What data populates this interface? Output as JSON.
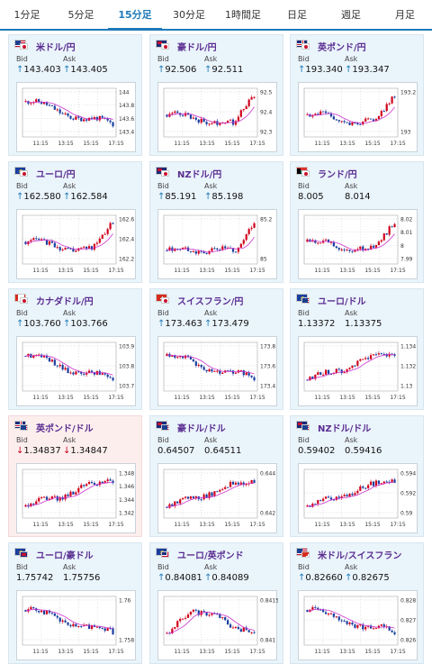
{
  "tabs": [
    {
      "label": "1分足"
    },
    {
      "label": "5分足"
    },
    {
      "label": "15分足",
      "active": true
    },
    {
      "label": "30分足"
    },
    {
      "label": "1時間足"
    },
    {
      "label": "日足"
    },
    {
      "label": "週足"
    },
    {
      "label": "月足"
    }
  ],
  "labels": {
    "bid": "Bid",
    "ask": "Ask"
  },
  "colors": {
    "accent": "#1e7ab8",
    "up": "#1e7ab8",
    "down": "#d0021b",
    "pair_name": "#5a2d91",
    "candle_up": "#d0021b",
    "candle_down": "#1a3fa0",
    "ma": "#cc33cc"
  },
  "x_ticks": [
    "11:15",
    "13:15",
    "15:15",
    "17:15"
  ],
  "pairs": [
    {
      "name": "米ドル/円",
      "flag": "us-jp",
      "bid": "143.403",
      "ask": "143.405",
      "bid_dir": "up",
      "ask_dir": "up",
      "y_ticks": [
        "144",
        "143.8",
        "143.6",
        "143.4"
      ],
      "trend": "down"
    },
    {
      "name": "豪ドル/円",
      "flag": "au-jp",
      "bid": "92.506",
      "ask": "92.511",
      "bid_dir": "up",
      "ask_dir": "up",
      "y_ticks": [
        "92.5",
        "92.4",
        "92.3"
      ],
      "trend": "vup"
    },
    {
      "name": "英ポンド/円",
      "flag": "gb-jp",
      "bid": "193.340",
      "ask": "193.347",
      "bid_dir": "up",
      "ask_dir": "up",
      "y_ticks": [
        "193.2",
        "193"
      ],
      "trend": "vup"
    },
    {
      "name": "ユーロ/円",
      "flag": "eu-jp",
      "bid": "162.580",
      "ask": "162.584",
      "bid_dir": "up",
      "ask_dir": "up",
      "y_ticks": [
        "162.6",
        "162.4",
        "162.2"
      ],
      "trend": "vup"
    },
    {
      "name": "NZドル/円",
      "flag": "nz-jp",
      "bid": "85.191",
      "ask": "85.198",
      "bid_dir": "up",
      "ask_dir": "up",
      "y_ticks": [
        "85.2",
        "85"
      ],
      "trend": "flatup"
    },
    {
      "name": "ランド/円",
      "flag": "za-jp",
      "bid": "8.005",
      "ask": "8.014",
      "bid_dir": "none",
      "ask_dir": "none",
      "y_ticks": [
        "8.02",
        "8.01",
        "8",
        "7.99"
      ],
      "trend": "vup"
    },
    {
      "name": "カナダドル/円",
      "flag": "ca-jp",
      "bid": "103.760",
      "ask": "103.766",
      "bid_dir": "up",
      "ask_dir": "up",
      "y_ticks": [
        "103.9",
        "103.8",
        "103.7"
      ],
      "trend": "down"
    },
    {
      "name": "スイスフラン/円",
      "flag": "ch-jp",
      "bid": "173.463",
      "ask": "173.479",
      "bid_dir": "up",
      "ask_dir": "up",
      "y_ticks": [
        "173.8",
        "173.6",
        "173.4"
      ],
      "trend": "down"
    },
    {
      "name": "ユーロ/ドル",
      "flag": "eu-us",
      "bid": "1.13372",
      "ask": "1.13375",
      "bid_dir": "none",
      "ask_dir": "none",
      "y_ticks": [
        "1.134",
        "1.132",
        "1.13"
      ],
      "trend": "up"
    },
    {
      "name": "英ポンド/ドル",
      "flag": "gb-us",
      "bid": "1.34837",
      "ask": "1.34847",
      "bid_dir": "down",
      "ask_dir": "down",
      "y_ticks": [
        "1.348",
        "1.346",
        "1.344",
        "1.342"
      ],
      "trend": "up"
    },
    {
      "name": "豪ドル/ドル",
      "flag": "au-us",
      "bid": "0.64507",
      "ask": "0.64511",
      "bid_dir": "none",
      "ask_dir": "none",
      "y_ticks": [
        "0.644",
        "0.642"
      ],
      "trend": "up"
    },
    {
      "name": "NZドル/ドル",
      "flag": "nz-us",
      "bid": "0.59402",
      "ask": "0.59416",
      "bid_dir": "none",
      "ask_dir": "none",
      "y_ticks": [
        "0.594",
        "0.592",
        "0.59"
      ],
      "trend": "up"
    },
    {
      "name": "ユーロ/豪ドル",
      "flag": "eu-au",
      "bid": "1.75742",
      "ask": "1.75756",
      "bid_dir": "none",
      "ask_dir": "none",
      "y_ticks": [
        "1.76",
        "1.758"
      ],
      "trend": "down"
    },
    {
      "name": "ユーロ/英ポンド",
      "flag": "eu-gb",
      "bid": "0.84081",
      "ask": "0.84089",
      "bid_dir": "up",
      "ask_dir": "up",
      "y_ticks": [
        "0.8415",
        "0.841"
      ],
      "trend": "upthendown"
    },
    {
      "name": "米ドル/スイスフラン",
      "flag": "us-ch",
      "bid": "0.82660",
      "ask": "0.82675",
      "bid_dir": "up",
      "ask_dir": "up",
      "y_ticks": [
        "0.828",
        "0.827",
        "0.826"
      ],
      "trend": "down"
    }
  ]
}
